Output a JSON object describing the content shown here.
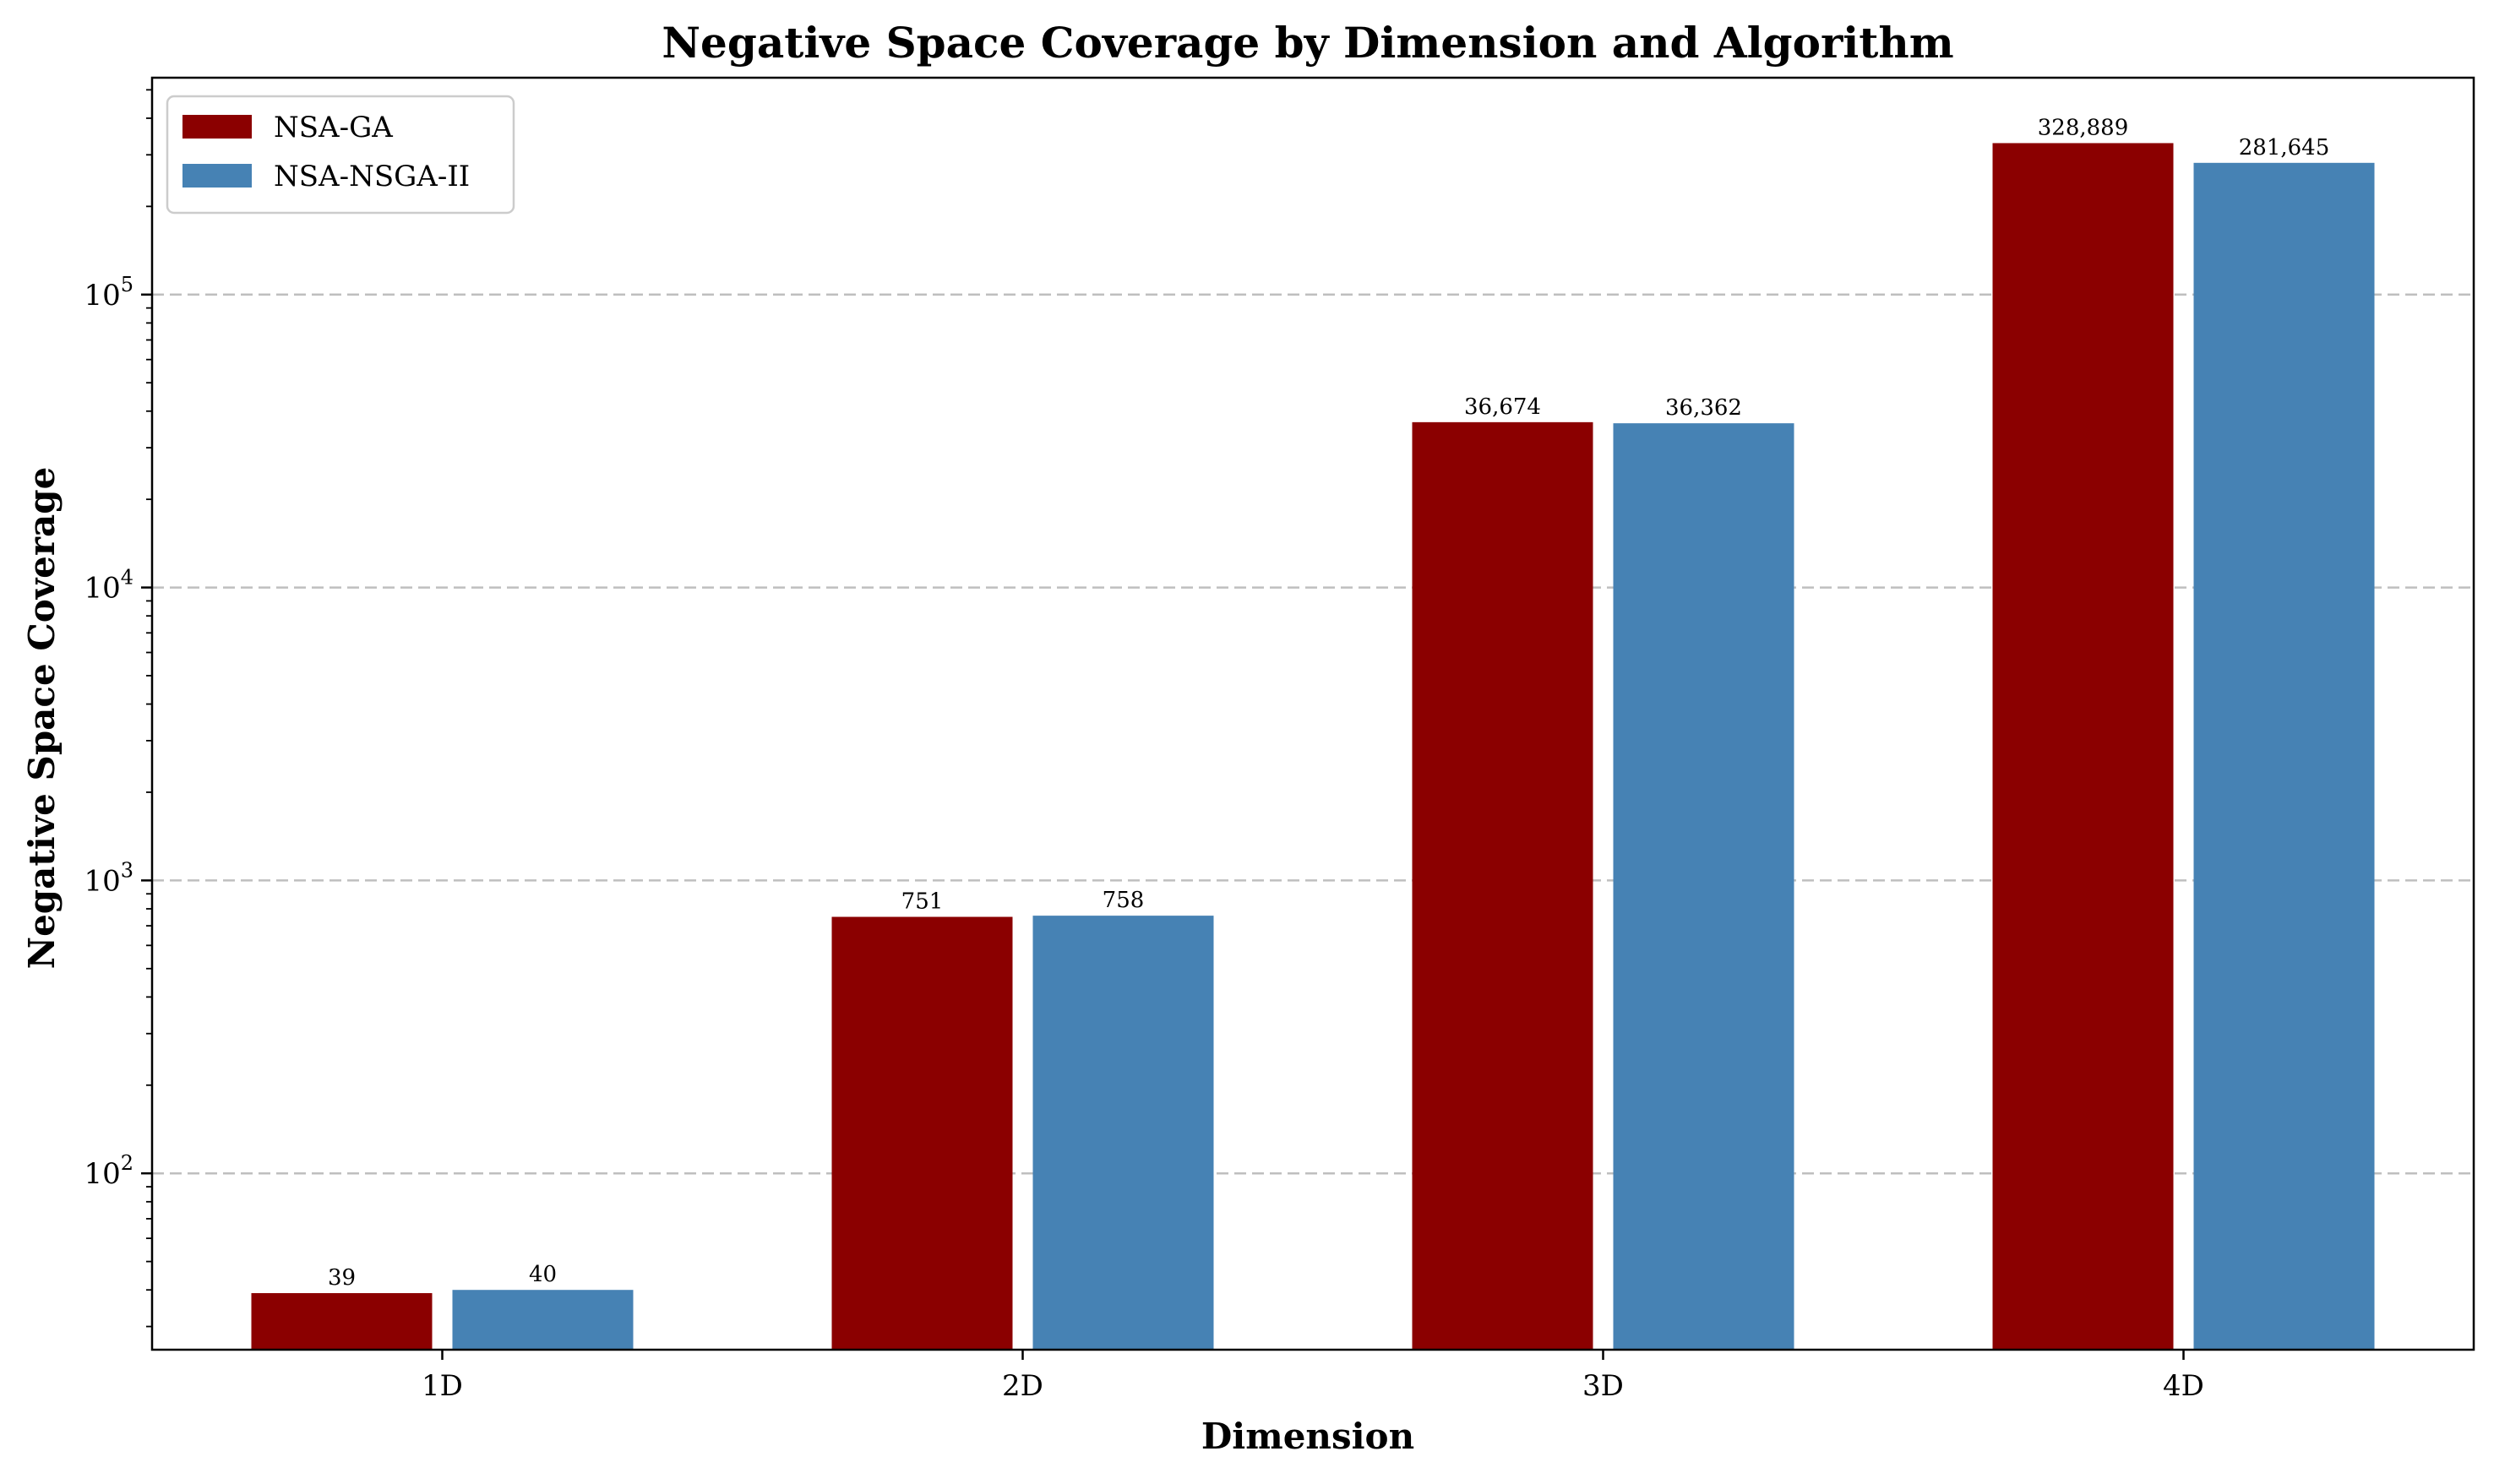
{
  "chart_data": {
    "type": "bar",
    "title": "Negative Space Coverage by Dimension and Algorithm",
    "xlabel": "Dimension",
    "ylabel": "Negative Space Coverage",
    "yscale": "log",
    "ylim": [
      25,
      550000
    ],
    "yticks": [
      {
        "value": 100,
        "base": "10",
        "exp": "2"
      },
      {
        "value": 1000,
        "base": "10",
        "exp": "3"
      },
      {
        "value": 10000,
        "base": "10",
        "exp": "4"
      },
      {
        "value": 100000,
        "base": "10",
        "exp": "5"
      }
    ],
    "grid": "y-major-dashed",
    "legend_position": "top-left",
    "categories": [
      "1D",
      "2D",
      "3D",
      "4D"
    ],
    "series": [
      {
        "name": "NSA-GA",
        "color": "#8b0000",
        "values": [
          39,
          751,
          36674,
          328889
        ],
        "labels": [
          "39",
          "751",
          "36,674",
          "328,889"
        ]
      },
      {
        "name": "NSA-NSGA-II",
        "color": "#4682b4",
        "values": [
          40,
          758,
          36362,
          281645
        ],
        "labels": [
          "40",
          "758",
          "36,362",
          "281,645"
        ]
      }
    ]
  }
}
